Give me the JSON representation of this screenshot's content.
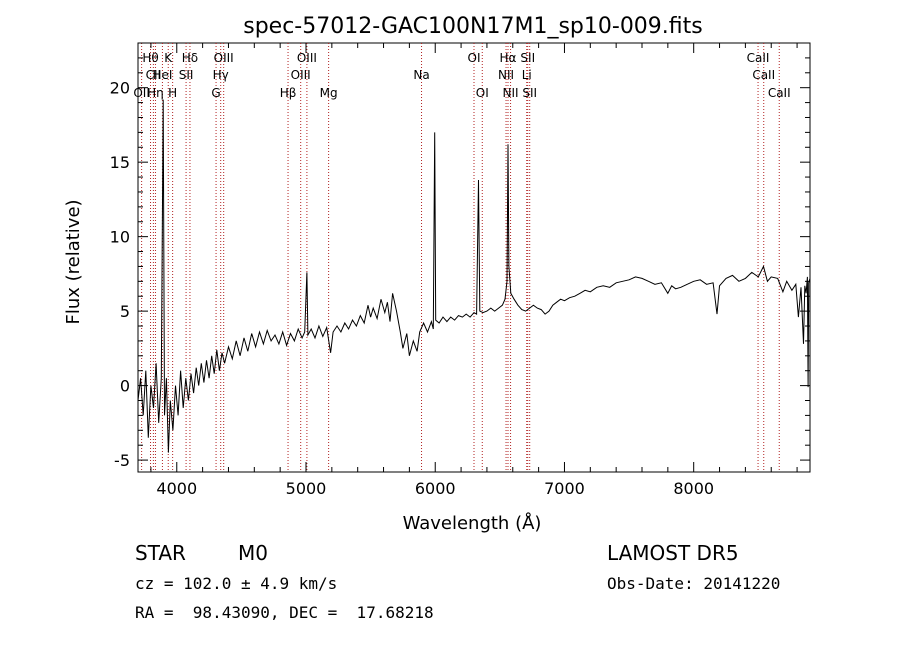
{
  "chart_data": {
    "type": "line",
    "title": "spec-57012-GAC100N17M1_sp10-009.fits",
    "xlabel": "Wavelength (Å)",
    "ylabel": "Flux (relative)",
    "xlim": [
      3700,
      8900
    ],
    "ylim": [
      -5.8,
      23
    ],
    "xticks": [
      4000,
      5000,
      6000,
      7000,
      8000
    ],
    "yticks": [
      -5,
      0,
      5,
      10,
      15,
      20
    ],
    "grid": false,
    "line_color": "#000000",
    "marker_color": "#b22222",
    "spectrum": [
      [
        3700,
        -1.0
      ],
      [
        3720,
        0.5
      ],
      [
        3740,
        -2.0
      ],
      [
        3760,
        1.0
      ],
      [
        3780,
        -3.5
      ],
      [
        3800,
        0.0
      ],
      [
        3820,
        -1.5
      ],
      [
        3840,
        1.5
      ],
      [
        3860,
        -2.5
      ],
      [
        3880,
        0.5
      ],
      [
        3895,
        19.2
      ],
      [
        3905,
        -2.0
      ],
      [
        3920,
        0.5
      ],
      [
        3935,
        -4.5
      ],
      [
        3950,
        -1.0
      ],
      [
        3970,
        -3.0
      ],
      [
        3990,
        0.0
      ],
      [
        4010,
        -2.0
      ],
      [
        4030,
        1.0
      ],
      [
        4050,
        -1.5
      ],
      [
        4070,
        0.5
      ],
      [
        4090,
        -1.0
      ],
      [
        4110,
        0.8
      ],
      [
        4130,
        -0.5
      ],
      [
        4150,
        1.2
      ],
      [
        4170,
        0.0
      ],
      [
        4190,
        1.5
      ],
      [
        4210,
        0.2
      ],
      [
        4230,
        1.7
      ],
      [
        4250,
        0.5
      ],
      [
        4270,
        2.0
      ],
      [
        4290,
        0.8
      ],
      [
        4310,
        2.4
      ],
      [
        4330,
        1.0
      ],
      [
        4350,
        2.2
      ],
      [
        4370,
        1.5
      ],
      [
        4400,
        2.6
      ],
      [
        4430,
        1.8
      ],
      [
        4460,
        3.0
      ],
      [
        4490,
        2.0
      ],
      [
        4520,
        3.2
      ],
      [
        4550,
        2.3
      ],
      [
        4580,
        3.5
      ],
      [
        4610,
        2.6
      ],
      [
        4640,
        3.6
      ],
      [
        4670,
        2.8
      ],
      [
        4700,
        3.7
      ],
      [
        4730,
        3.0
      ],
      [
        4760,
        3.4
      ],
      [
        4790,
        2.8
      ],
      [
        4820,
        3.6
      ],
      [
        4850,
        2.7
      ],
      [
        4880,
        3.5
      ],
      [
        4910,
        3.0
      ],
      [
        4940,
        3.8
      ],
      [
        4970,
        3.2
      ],
      [
        4990,
        3.6
      ],
      [
        5007,
        7.6
      ],
      [
        5015,
        3.4
      ],
      [
        5040,
        3.8
      ],
      [
        5070,
        3.2
      ],
      [
        5100,
        4.0
      ],
      [
        5130,
        3.3
      ],
      [
        5160,
        3.9
      ],
      [
        5190,
        2.2
      ],
      [
        5210,
        3.6
      ],
      [
        5240,
        4.0
      ],
      [
        5270,
        3.6
      ],
      [
        5300,
        4.2
      ],
      [
        5330,
        3.8
      ],
      [
        5360,
        4.4
      ],
      [
        5390,
        4.0
      ],
      [
        5420,
        4.7
      ],
      [
        5450,
        4.2
      ],
      [
        5480,
        5.4
      ],
      [
        5500,
        4.6
      ],
      [
        5520,
        5.2
      ],
      [
        5550,
        4.5
      ],
      [
        5580,
        5.8
      ],
      [
        5610,
        4.9
      ],
      [
        5630,
        5.6
      ],
      [
        5650,
        4.3
      ],
      [
        5670,
        6.2
      ],
      [
        5700,
        5.0
      ],
      [
        5730,
        3.6
      ],
      [
        5750,
        2.5
      ],
      [
        5780,
        3.5
      ],
      [
        5800,
        2.0
      ],
      [
        5830,
        3.0
      ],
      [
        5860,
        2.3
      ],
      [
        5880,
        3.6
      ],
      [
        5910,
        4.2
      ],
      [
        5940,
        3.6
      ],
      [
        5970,
        4.3
      ],
      [
        5985,
        3.8
      ],
      [
        5996,
        17.0
      ],
      [
        6004,
        4.4
      ],
      [
        6030,
        4.2
      ],
      [
        6060,
        4.6
      ],
      [
        6090,
        4.3
      ],
      [
        6120,
        4.6
      ],
      [
        6150,
        4.4
      ],
      [
        6180,
        4.7
      ],
      [
        6210,
        4.6
      ],
      [
        6240,
        4.8
      ],
      [
        6270,
        4.6
      ],
      [
        6300,
        4.9
      ],
      [
        6320,
        4.8
      ],
      [
        6335,
        13.8
      ],
      [
        6345,
        5.0
      ],
      [
        6370,
        4.9
      ],
      [
        6400,
        5.0
      ],
      [
        6430,
        5.2
      ],
      [
        6460,
        5.0
      ],
      [
        6490,
        5.2
      ],
      [
        6520,
        5.4
      ],
      [
        6540,
        5.8
      ],
      [
        6555,
        7.0
      ],
      [
        6563,
        16.2
      ],
      [
        6570,
        8.0
      ],
      [
        6585,
        6.2
      ],
      [
        6610,
        5.8
      ],
      [
        6640,
        5.4
      ],
      [
        6670,
        5.1
      ],
      [
        6700,
        5.0
      ],
      [
        6730,
        5.2
      ],
      [
        6760,
        5.4
      ],
      [
        6790,
        5.2
      ],
      [
        6820,
        5.1
      ],
      [
        6850,
        4.8
      ],
      [
        6880,
        5.0
      ],
      [
        6910,
        5.4
      ],
      [
        6940,
        5.6
      ],
      [
        6970,
        5.8
      ],
      [
        7000,
        5.7
      ],
      [
        7040,
        5.9
      ],
      [
        7080,
        6.0
      ],
      [
        7120,
        6.2
      ],
      [
        7160,
        6.4
      ],
      [
        7200,
        6.3
      ],
      [
        7250,
        6.6
      ],
      [
        7300,
        6.7
      ],
      [
        7350,
        6.6
      ],
      [
        7400,
        6.9
      ],
      [
        7450,
        7.0
      ],
      [
        7500,
        7.1
      ],
      [
        7550,
        7.3
      ],
      [
        7600,
        7.2
      ],
      [
        7650,
        7.0
      ],
      [
        7700,
        6.8
      ],
      [
        7750,
        6.9
      ],
      [
        7800,
        6.2
      ],
      [
        7830,
        6.7
      ],
      [
        7860,
        6.5
      ],
      [
        7900,
        6.6
      ],
      [
        7950,
        6.8
      ],
      [
        8000,
        7.0
      ],
      [
        8050,
        7.1
      ],
      [
        8100,
        6.8
      ],
      [
        8150,
        6.9
      ],
      [
        8180,
        4.8
      ],
      [
        8200,
        6.7
      ],
      [
        8250,
        7.2
      ],
      [
        8300,
        7.4
      ],
      [
        8350,
        7.0
      ],
      [
        8400,
        7.2
      ],
      [
        8450,
        7.6
      ],
      [
        8500,
        7.3
      ],
      [
        8540,
        8.0
      ],
      [
        8570,
        7.0
      ],
      [
        8600,
        7.3
      ],
      [
        8650,
        7.2
      ],
      [
        8690,
        6.3
      ],
      [
        8720,
        7.0
      ],
      [
        8760,
        6.4
      ],
      [
        8790,
        6.8
      ],
      [
        8810,
        4.6
      ],
      [
        8830,
        6.6
      ],
      [
        8850,
        2.8
      ],
      [
        8860,
        6.7
      ],
      [
        8870,
        6.2
      ],
      [
        8880,
        7.3
      ],
      [
        8885,
        -0.1
      ],
      [
        8890,
        6.9
      ],
      [
        8900,
        7.2
      ]
    ],
    "line_markers": [
      {
        "label": "Hθ",
        "x": 3797,
        "row": 1
      },
      {
        "label": "CII",
        "x": 3819,
        "row": 2
      },
      {
        "label": "OII",
        "x": 3728,
        "row": 3
      },
      {
        "label": "Hη",
        "x": 3835,
        "row": 3
      },
      {
        "label": "HeI",
        "x": 3889,
        "row": 2
      },
      {
        "label": "K",
        "x": 3934,
        "row": 1
      },
      {
        "label": "H",
        "x": 3968,
        "row": 3
      },
      {
        "label": "Hδ",
        "x": 4102,
        "row": 1
      },
      {
        "label": "SII",
        "x": 4072,
        "row": 2
      },
      {
        "label": "OIII",
        "x": 4363,
        "row": 1
      },
      {
        "label": "Hγ",
        "x": 4340,
        "row": 2
      },
      {
        "label": "G",
        "x": 4304,
        "row": 3
      },
      {
        "label": "Hβ",
        "x": 4861,
        "row": 3
      },
      {
        "label": "OIII",
        "x": 5007,
        "row": 1
      },
      {
        "label": "OIII",
        "x": 4959,
        "row": 2
      },
      {
        "label": "Mg",
        "x": 5175,
        "row": 3
      },
      {
        "label": "Na",
        "x": 5894,
        "row": 2
      },
      {
        "label": "OI",
        "x": 6300,
        "row": 1
      },
      {
        "label": "OI",
        "x": 6364,
        "row": 3
      },
      {
        "label": "Hα",
        "x": 6563,
        "row": 1
      },
      {
        "label": "NII",
        "x": 6548,
        "row": 2
      },
      {
        "label": "NII",
        "x": 6583,
        "row": 3
      },
      {
        "label": "SII",
        "x": 6716,
        "row": 1
      },
      {
        "label": "Li",
        "x": 6708,
        "row": 2
      },
      {
        "label": "SII",
        "x": 6731,
        "row": 3
      },
      {
        "label": "CaII",
        "x": 8498,
        "row": 1
      },
      {
        "label": "CaII",
        "x": 8542,
        "row": 2
      },
      {
        "label": "CaII",
        "x": 8662,
        "row": 3
      }
    ]
  },
  "info": {
    "object_type": "STAR",
    "subclass": "M0",
    "survey": "LAMOST DR5",
    "cz": "cz = 102.0 ± 4.9 km/s",
    "obs_date": "Obs-Date: 20141220",
    "coords": "RA =  98.43090, DEC =  17.68218"
  }
}
